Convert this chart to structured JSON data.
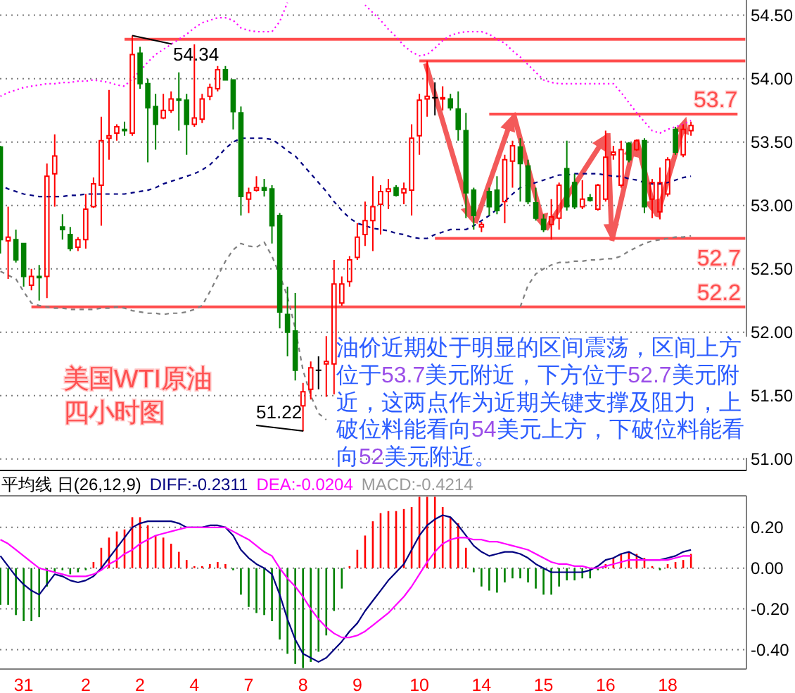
{
  "chart_data": [
    {
      "type": "candlestick",
      "title": "美国WTI原油四小时图",
      "categories": [
        null,
        null,
        null,
        null,
        null,
        null,
        null,
        null,
        null,
        null,
        null,
        null,
        null,
        null,
        null,
        null,
        null,
        null,
        null,
        null,
        null,
        null,
        null,
        null,
        null,
        null,
        null,
        null,
        null,
        null,
        null,
        null,
        null,
        null,
        null,
        null,
        null,
        null,
        null,
        null,
        null,
        null,
        null,
        null,
        null,
        null,
        null,
        null,
        null,
        null,
        null,
        null,
        null,
        null,
        null,
        null,
        null,
        null,
        null,
        null,
        null,
        null,
        null,
        null,
        null,
        null,
        null,
        null,
        null,
        null,
        null,
        null,
        null,
        null,
        null,
        null,
        null,
        null,
        null,
        null,
        null,
        null,
        null,
        null,
        null,
        null,
        null,
        null,
        null,
        null,
        null,
        null,
        null,
        null,
        null,
        null,
        null
      ],
      "ohlc": [
        [
          53.46,
          53.47,
          52.62,
          52.73
        ],
        [
          52.72,
          52.99,
          52.42,
          52.75
        ],
        [
          52.73,
          52.81,
          52.55,
          52.57
        ],
        [
          52.7,
          52.7,
          52.36,
          52.44
        ],
        [
          52.37,
          52.5,
          52.33,
          52.44
        ],
        [
          52.44,
          52.53,
          52.25,
          52.43
        ],
        [
          52.44,
          53.33,
          52.27,
          53.23
        ],
        [
          53.25,
          53.56,
          52.99,
          53.39
        ],
        [
          52.83,
          52.93,
          52.73,
          52.81
        ],
        [
          52.77,
          52.83,
          52.64,
          52.66
        ],
        [
          52.67,
          52.75,
          52.64,
          52.73
        ],
        [
          52.73,
          53.09,
          52.66,
          52.97
        ],
        [
          52.99,
          53.22,
          52.98,
          53.17
        ],
        [
          53.16,
          53.7,
          52.84,
          53.51
        ],
        [
          53.53,
          53.91,
          53.36,
          53.55
        ],
        [
          53.57,
          53.64,
          53.51,
          53.62
        ],
        [
          53.6,
          53.66,
          53.55,
          53.59
        ],
        [
          53.57,
          54.34,
          53.55,
          54.19
        ],
        [
          54.2,
          54.25,
          53.92,
          53.96
        ],
        [
          53.96,
          54.0,
          53.34,
          53.77
        ],
        [
          53.78,
          53.88,
          53.44,
          53.64
        ],
        [
          53.69,
          53.88,
          53.68,
          53.75
        ],
        [
          53.75,
          53.9,
          53.73,
          53.84
        ],
        [
          53.84,
          54.05,
          53.59,
          53.83
        ],
        [
          53.83,
          53.88,
          53.4,
          53.64
        ],
        [
          53.64,
          54.27,
          53.62,
          53.69
        ],
        [
          53.68,
          53.88,
          53.65,
          53.84
        ],
        [
          53.86,
          53.96,
          53.83,
          53.93
        ],
        [
          53.92,
          54.1,
          53.9,
          54.07
        ],
        [
          54.07,
          54.1,
          53.99,
          53.99
        ],
        [
          53.99,
          53.99,
          53.6,
          53.74
        ],
        [
          53.73,
          53.78,
          52.92,
          53.07
        ],
        [
          53.05,
          53.14,
          52.94,
          53.1
        ],
        [
          53.12,
          53.23,
          53.11,
          53.14
        ],
        [
          53.14,
          53.21,
          53.07,
          53.12
        ],
        [
          53.13,
          53.16,
          52.7,
          52.84
        ],
        [
          52.92,
          52.94,
          52.03,
          52.16
        ],
        [
          52.14,
          52.36,
          51.81,
          52.0
        ],
        [
          52.01,
          52.31,
          51.62,
          51.7
        ],
        [
          51.42,
          51.6,
          51.22,
          51.53
        ],
        [
          51.55,
          51.77,
          51.47,
          51.72
        ],
        [
          51.7,
          51.81,
          51.55,
          51.7
        ],
        [
          51.75,
          51.97,
          51.49,
          51.77
        ],
        [
          51.75,
          52.57,
          51.51,
          52.38
        ],
        [
          52.23,
          52.44,
          52.21,
          52.38
        ],
        [
          52.4,
          52.6,
          52.36,
          52.57
        ],
        [
          52.59,
          52.86,
          52.57,
          52.75
        ],
        [
          52.77,
          53.03,
          52.68,
          52.88
        ],
        [
          52.88,
          53.23,
          52.64,
          52.99
        ],
        [
          53.01,
          53.16,
          52.77,
          53.11
        ],
        [
          53.11,
          53.21,
          52.97,
          53.13
        ],
        [
          53.14,
          53.16,
          53.07,
          53.08
        ],
        [
          53.1,
          53.18,
          53.01,
          53.13
        ],
        [
          53.12,
          53.64,
          52.92,
          53.53
        ],
        [
          53.55,
          53.88,
          53.4,
          53.83
        ],
        [
          53.84,
          54.14,
          53.7,
          53.86
        ],
        [
          53.85,
          53.97,
          53.71,
          53.85
        ],
        [
          53.84,
          53.94,
          53.75,
          53.85
        ],
        [
          53.84,
          53.88,
          53.75,
          53.77
        ],
        [
          53.76,
          53.9,
          53.51,
          53.6
        ],
        [
          53.59,
          53.73,
          52.9,
          53.1
        ],
        [
          53.12,
          53.14,
          52.81,
          52.92
        ],
        [
          52.83,
          52.87,
          52.79,
          52.85
        ],
        [
          53.11,
          53.14,
          52.92,
          52.99
        ],
        [
          53.12,
          53.23,
          52.93,
          52.96
        ],
        [
          53.03,
          53.4,
          52.86,
          53.36
        ],
        [
          53.35,
          53.51,
          53.14,
          53.47
        ],
        [
          53.46,
          53.53,
          53.03,
          53.33
        ],
        [
          53.31,
          53.36,
          53.01,
          53.03
        ],
        [
          53.02,
          53.14,
          52.88,
          52.9
        ],
        [
          52.89,
          52.93,
          52.79,
          52.81
        ],
        [
          52.85,
          53.05,
          52.73,
          52.91
        ],
        [
          52.9,
          53.18,
          52.81,
          53.16
        ],
        [
          53.29,
          53.51,
          52.96,
          52.99
        ],
        [
          53.18,
          53.25,
          52.97,
          52.99
        ],
        [
          52.99,
          53.2,
          52.97,
          53.05
        ],
        [
          53.06,
          53.09,
          53.03,
          53.04
        ],
        [
          52.97,
          53.17,
          52.96,
          53.16
        ],
        [
          53.05,
          53.59,
          53.03,
          53.38
        ],
        [
          53.4,
          53.47,
          53.36,
          53.42
        ],
        [
          53.16,
          53.51,
          53.14,
          53.44
        ],
        [
          53.49,
          53.5,
          53.34,
          53.36
        ],
        [
          53.44,
          53.52,
          53.43,
          53.51
        ],
        [
          53.51,
          53.53,
          52.94,
          52.99
        ],
        [
          53.05,
          53.21,
          52.9,
          53.18
        ],
        [
          52.95,
          53.3,
          52.89,
          53.18
        ],
        [
          53.09,
          53.38,
          53.07,
          53.36
        ],
        [
          53.6,
          53.62,
          53.4,
          53.42
        ],
        [
          53.4,
          53.64,
          53.38,
          53.6
        ],
        [
          53.59,
          53.66,
          53.55,
          53.63
        ],
        null,
        null,
        null,
        null,
        null,
        null,
        null
      ],
      "colors": [
        "#008000",
        "#ff0000",
        "#008000",
        "#008000",
        "#ff0000",
        "#008000",
        "#ff0000",
        "#ff0000",
        "#008000",
        "#008000",
        "#ff0000",
        "#ff0000",
        "#ff0000",
        "#ff0000",
        "#ff0000",
        "#ff0000",
        "#008000",
        "#ff0000",
        "#008000",
        "#008000",
        "#008000",
        "#ff0000",
        "#ff0000",
        "#008000",
        "#008000",
        "#ff0000",
        "#ff0000",
        "#ff0000",
        "#ff0000",
        "#008000",
        "#008000",
        "#008000",
        "#ff0000",
        "#ff0000",
        "#008000",
        "#008000",
        "#008000",
        "#008000",
        "#008000",
        "#ff0000",
        "#ff0000",
        "#000000",
        "#ff0000",
        "#ff0000",
        "#ff0000",
        "#ff0000",
        "#ff0000",
        "#ff0000",
        "#ff0000",
        "#ff0000",
        "#ff0000",
        "#008000",
        "#ff0000",
        "#ff0000",
        "#ff0000",
        "#ff0000",
        "#000000",
        "#ff0000",
        "#008000",
        "#008000",
        "#008000",
        "#008000",
        "#ff0000",
        "#008000",
        "#008000",
        "#ff0000",
        "#ff0000",
        "#008000",
        "#008000",
        "#008000",
        "#008000",
        "#ff0000",
        "#ff0000",
        "#008000",
        "#008000",
        "#ff0000",
        "#008000",
        "#ff0000",
        "#ff0000",
        "#ff0000",
        "#ff0000",
        "#008000",
        "#ff0000",
        "#008000",
        "#ff0000",
        "#ff0000",
        "#ff0000",
        "#008000",
        "#ff0000",
        "#ff0000",
        null,
        null,
        null,
        null,
        null,
        null,
        null
      ],
      "ylim": [
        50.91,
        54.62
      ],
      "yticks": [
        {
          "value": 51,
          "label": "51.00"
        },
        {
          "value": 51.5,
          "label": "51.50"
        },
        {
          "value": 52,
          "label": "52.00"
        },
        {
          "value": 52.5,
          "label": "52.50"
        },
        {
          "value": 53,
          "label": "53.00"
        },
        {
          "value": 53.5,
          "label": "53.50"
        },
        {
          "value": 54,
          "label": "54.00"
        },
        {
          "value": 54.5,
          "label": "54.50"
        }
      ],
      "grid": "y",
      "tick_labels": "y",
      "series": [
        {
          "type": "line",
          "color": "#ff00ff",
          "line_style": "dotted",
          "values": [
            53.86,
            53.89,
            53.91,
            53.93,
            53.94,
            53.95,
            53.96,
            53.96,
            53.97,
            53.97,
            53.98,
            53.98,
            53.99,
            53.98,
            53.97,
            53.95,
            53.94,
            54.0,
            54.06,
            54.13,
            54.19,
            54.23,
            54.27,
            54.31,
            54.35,
            54.4,
            54.44,
            54.46,
            54.48,
            54.48,
            54.46,
            54.4,
            54.38,
            54.37,
            54.37,
            54.37,
            54.45,
            54.6,
            null,
            null,
            null,
            null,
            null,
            null,
            null,
            null,
            null,
            54.58,
            54.52,
            54.46,
            54.39,
            54.33,
            54.26,
            54.21,
            54.18,
            54.19,
            54.24,
            54.3,
            54.34,
            54.36,
            54.37,
            54.37,
            54.37,
            54.35,
            54.31,
            54.28,
            54.22,
            54.17,
            54.11,
            54.05,
            53.99,
            53.97,
            53.96,
            53.96,
            53.96,
            53.96,
            53.96,
            53.96,
            53.96,
            53.96,
            53.89,
            53.81,
            53.73,
            53.66,
            53.59,
            53.57,
            53.6,
            53.62,
            53.64,
            53.67,
            null,
            null,
            null,
            null,
            null,
            null,
            null
          ]
        },
        {
          "type": "line",
          "color": "#000080",
          "line_style": "dashed",
          "values": [
            53.16,
            53.13,
            53.11,
            53.09,
            53.08,
            53.07,
            53.07,
            53.07,
            53.07,
            53.08,
            53.08,
            53.09,
            53.09,
            53.09,
            53.09,
            53.09,
            53.09,
            53.1,
            53.11,
            53.12,
            53.14,
            53.17,
            53.19,
            53.21,
            53.23,
            53.25,
            53.28,
            53.32,
            53.38,
            53.45,
            53.5,
            53.53,
            53.53,
            53.53,
            53.53,
            53.52,
            53.48,
            53.43,
            53.39,
            53.32,
            53.25,
            53.18,
            53.11,
            53.03,
            52.96,
            52.9,
            52.86,
            52.84,
            52.82,
            52.81,
            52.8,
            52.78,
            52.77,
            52.75,
            52.74,
            52.74,
            52.77,
            52.79,
            52.81,
            52.81,
            52.81,
            52.84,
            52.88,
            52.92,
            52.97,
            53.03,
            53.09,
            53.14,
            53.16,
            53.18,
            53.2,
            53.22,
            53.24,
            53.24,
            53.25,
            53.25,
            53.25,
            53.25,
            53.24,
            53.23,
            53.23,
            53.21,
            53.2,
            53.18,
            53.17,
            53.17,
            53.18,
            53.2,
            53.22,
            53.23,
            null,
            null,
            null,
            null,
            null,
            null,
            null
          ]
        },
        {
          "type": "line",
          "color": "#808080",
          "line_style": "dashed",
          "values": [
            52.48,
            52.45,
            52.42,
            52.32,
            52.23,
            52.21,
            52.2,
            52.19,
            52.19,
            52.18,
            52.18,
            52.18,
            52.18,
            52.19,
            52.19,
            52.2,
            52.19,
            52.17,
            52.16,
            52.15,
            52.15,
            52.14,
            52.15,
            52.15,
            52.16,
            52.18,
            52.21,
            52.32,
            52.44,
            52.56,
            52.65,
            52.7,
            52.68,
            52.67,
            52.71,
            52.6,
            52.45,
            52.28,
            52.03,
            51.7,
            51.5,
            51.36,
            51.31,
            null,
            null,
            null,
            null,
            null,
            null,
            null,
            null,
            null,
            null,
            null,
            null,
            null,
            null,
            null,
            null,
            null,
            null,
            null,
            null,
            null,
            null,
            null,
            null,
            52.2,
            52.37,
            52.46,
            52.5,
            52.53,
            52.55,
            52.55,
            52.56,
            52.56,
            52.57,
            52.57,
            52.58,
            52.58,
            52.6,
            52.64,
            52.67,
            52.7,
            52.72,
            52.73,
            52.74,
            52.75,
            52.75,
            52.76,
            null,
            null,
            null,
            null,
            null,
            null,
            null
          ]
        },
        {
          "type": "line",
          "color": "#ff4d4d",
          "values": [
            null,
            null,
            null,
            null,
            null,
            null,
            null,
            null,
            null,
            null,
            null,
            null,
            null,
            null,
            null,
            null,
            54.31,
            54.31,
            54.31,
            54.31,
            54.31,
            54.31,
            54.31,
            54.31,
            54.31,
            54.31,
            54.31,
            54.31,
            54.31,
            54.31,
            54.31,
            54.31,
            54.31,
            54.31,
            54.31,
            54.31,
            54.31,
            54.31,
            54.31,
            54.31,
            54.31,
            54.31,
            54.31,
            54.31,
            54.31,
            54.31,
            54.31,
            54.31,
            54.31,
            54.31,
            54.31,
            54.31,
            54.31,
            54.31,
            54.31,
            54.31,
            54.31,
            54.31,
            54.31,
            54.31,
            54.31,
            54.31,
            54.31,
            54.31,
            54.31,
            54.31,
            54.31,
            54.31,
            54.31,
            54.31,
            54.31,
            54.31,
            54.31,
            54.31,
            54.31,
            54.31,
            54.31,
            54.31,
            54.31,
            54.31,
            54.31,
            54.31,
            54.31,
            54.31,
            54.31,
            54.31,
            54.31,
            54.31,
            54.31,
            54.31,
            54.31,
            54.31,
            54.31,
            54.31,
            54.31,
            54.31,
            54.31
          ]
        },
        {
          "type": "line",
          "color": "#ff4d4d",
          "values": [
            null,
            null,
            null,
            null,
            null,
            null,
            null,
            null,
            null,
            null,
            null,
            null,
            null,
            null,
            null,
            null,
            null,
            null,
            null,
            null,
            null,
            null,
            null,
            null,
            null,
            null,
            null,
            null,
            null,
            null,
            null,
            null,
            null,
            null,
            null,
            null,
            null,
            null,
            null,
            null,
            null,
            null,
            null,
            null,
            null,
            null,
            null,
            null,
            null,
            null,
            null,
            null,
            null,
            null,
            54.14,
            54.14,
            54.14,
            54.14,
            54.14,
            54.14,
            54.14,
            54.14,
            54.14,
            54.14,
            54.14,
            54.14,
            54.14,
            54.14,
            54.14,
            54.14,
            54.14,
            54.14,
            54.14,
            54.14,
            54.14,
            54.14,
            54.14,
            54.14,
            54.14,
            54.14,
            54.14,
            54.14,
            54.14,
            54.14,
            54.14,
            54.14,
            54.14,
            54.14,
            54.14,
            54.14,
            54.14,
            54.14,
            54.14,
            54.14,
            54.14,
            54.14,
            54.14
          ]
        },
        {
          "type": "line",
          "name": "53.7",
          "color": "#ff4d4d",
          "values": [
            null,
            null,
            null,
            null,
            null,
            null,
            null,
            null,
            null,
            null,
            null,
            null,
            null,
            null,
            null,
            null,
            null,
            null,
            null,
            null,
            null,
            null,
            null,
            null,
            null,
            null,
            null,
            null,
            null,
            null,
            null,
            null,
            null,
            null,
            null,
            null,
            null,
            null,
            null,
            null,
            null,
            null,
            null,
            null,
            null,
            null,
            null,
            null,
            null,
            null,
            null,
            null,
            null,
            null,
            null,
            null,
            null,
            null,
            null,
            null,
            null,
            null,
            null,
            53.72,
            53.72,
            53.72,
            53.72,
            53.72,
            53.72,
            53.72,
            53.72,
            53.72,
            53.72,
            53.72,
            53.72,
            53.72,
            53.72,
            53.72,
            53.72,
            53.72,
            53.72,
            53.72,
            53.72,
            53.72,
            53.72,
            53.72,
            53.72,
            53.72,
            53.72,
            53.72,
            53.72,
            53.72,
            53.72,
            53.72,
            53.72,
            53.72,
            null
          ]
        },
        {
          "type": "line",
          "name": "52.7",
          "color": "#ff4d4d",
          "values": [
            null,
            null,
            null,
            null,
            null,
            null,
            null,
            null,
            null,
            null,
            null,
            null,
            null,
            null,
            null,
            null,
            null,
            null,
            null,
            null,
            null,
            null,
            null,
            null,
            null,
            null,
            null,
            null,
            null,
            null,
            null,
            null,
            null,
            null,
            null,
            null,
            null,
            null,
            null,
            null,
            null,
            null,
            null,
            null,
            null,
            null,
            null,
            null,
            null,
            null,
            null,
            null,
            null,
            null,
            null,
            null,
            52.74,
            52.74,
            52.74,
            52.74,
            52.74,
            52.74,
            52.74,
            52.74,
            52.74,
            52.74,
            52.74,
            52.74,
            52.74,
            52.74,
            52.74,
            52.74,
            52.74,
            52.74,
            52.74,
            52.74,
            52.74,
            52.74,
            52.74,
            52.74,
            52.74,
            52.74,
            52.74,
            52.74,
            52.74,
            52.74,
            52.74,
            52.74,
            52.74,
            52.74,
            52.74,
            52.74,
            52.74,
            52.74,
            52.74,
            52.74,
            52.74
          ]
        },
        {
          "type": "line",
          "name": "52.2",
          "color": "#ff4d4d",
          "values": [
            null,
            null,
            null,
            null,
            52.2,
            52.2,
            52.2,
            52.2,
            52.2,
            52.2,
            52.2,
            52.2,
            52.2,
            52.2,
            52.2,
            52.2,
            52.2,
            52.2,
            52.2,
            52.2,
            52.2,
            52.2,
            52.2,
            52.2,
            52.2,
            52.2,
            52.2,
            52.2,
            52.2,
            52.2,
            52.2,
            52.2,
            52.2,
            52.2,
            52.2,
            52.2,
            52.2,
            52.2,
            52.2,
            52.2,
            52.2,
            52.2,
            52.2,
            52.2,
            52.2,
            52.2,
            52.2,
            52.2,
            52.2,
            52.2,
            52.2,
            52.2,
            52.2,
            52.2,
            52.2,
            52.2,
            52.2,
            52.2,
            52.2,
            52.2,
            52.2,
            52.2,
            52.2,
            52.2,
            52.2,
            52.2,
            52.2,
            52.2,
            52.2,
            52.2,
            52.2,
            52.2,
            52.2,
            52.2,
            52.2,
            52.2,
            52.2,
            52.2,
            52.2,
            52.2,
            52.2,
            52.2,
            52.2,
            52.2,
            52.2,
            52.2,
            52.2,
            52.2,
            52.2,
            52.2,
            52.2,
            52.2,
            52.2,
            52.2,
            52.2,
            52.2,
            52.2
          ]
        }
      ],
      "annotations": [
        {
          "text": "54.34",
          "y": 54.34
        },
        "51.22",
        "油价近期处于明显的区间震荡，区间上方位于53.7美元附近，下方位于52.7美元附近，这两点作为近期关键支撑及阻力，上破位料能看向54美元上方，下破位料能看向52美元附近。"
      ]
    },
    {
      "type": "bar",
      "title": "平均线 日(26,12,9)",
      "categories": [
        null,
        null,
        null,
        "31",
        null,
        null,
        null,
        null,
        null,
        null,
        null,
        "2",
        null,
        null,
        null,
        null,
        null,
        null,
        "2",
        null,
        null,
        null,
        null,
        null,
        null,
        "4",
        null,
        null,
        null,
        null,
        null,
        null,
        "7",
        null,
        null,
        null,
        null,
        null,
        null,
        "8",
        null,
        null,
        null,
        null,
        null,
        null,
        "9",
        null,
        null,
        null,
        null,
        null,
        null,
        null,
        "10",
        null,
        null,
        null,
        null,
        null,
        null,
        null,
        "14",
        null,
        null,
        null,
        null,
        null,
        null,
        null,
        "15",
        null,
        null,
        null,
        null,
        null,
        null,
        null,
        "16",
        null,
        null,
        null,
        null,
        null,
        null,
        null,
        "18",
        null,
        null,
        null,
        null,
        null,
        null,
        null,
        null,
        null,
        null
      ],
      "ylim": [
        -0.495,
        0.355
      ],
      "yticks": [
        {
          "value": 0.2,
          "label": "0.20"
        },
        {
          "value": 0,
          "label": "0.00"
        },
        {
          "value": -0.2,
          "label": "-0.20"
        },
        {
          "value": -0.4,
          "label": "-0.40"
        }
      ],
      "grid": "y",
      "legend": "top left",
      "series": [
        {
          "values": [
            -0.18,
            -0.18,
            -0.23,
            -0.26,
            -0.26,
            -0.24,
            -0.09,
            -0.02,
            -0.01,
            -0.03,
            -0.02,
            -0.01,
            0.03,
            0.1,
            0.15,
            0.18,
            0.19,
            0.25,
            0.25,
            0.21,
            0.16,
            0.15,
            0.12,
            0.08,
            0.04,
            0.01,
            0.01,
            0.02,
            0.03,
            0.02,
            -0.01,
            -0.13,
            -0.19,
            -0.22,
            -0.23,
            -0.26,
            -0.35,
            -0.42,
            -0.47,
            -0.49,
            -0.46,
            -0.41,
            -0.33,
            -0.21,
            -0.1,
            0.01,
            0.09,
            0.16,
            0.23,
            0.27,
            0.28,
            0.28,
            0.29,
            0.3,
            0.35,
            0.35,
            0.35,
            0.3,
            0.25,
            0.22,
            0.1,
            -0.02,
            -0.09,
            -0.11,
            -0.12,
            -0.07,
            -0.05,
            -0.05,
            -0.07,
            -0.1,
            -0.13,
            -0.13,
            -0.09,
            -0.06,
            -0.06,
            -0.05,
            -0.05,
            -0.01,
            0.02,
            0.05,
            0.07,
            0.08,
            0.07,
            0.05,
            0.01,
            -0.01,
            0.02,
            0.03,
            0.04,
            0.07,
            null,
            null,
            null,
            null,
            null,
            null,
            null
          ],
          "colors": [
            "#008000",
            "#008000",
            "#008000",
            "#008000",
            "#008000",
            "#008000",
            "#008000",
            "#008000",
            "#008000",
            "#008000",
            "#008000",
            "#008000",
            "#ff0000",
            "#ff0000",
            "#ff0000",
            "#ff0000",
            "#ff0000",
            "#ff0000",
            "#ff0000",
            "#ff0000",
            "#ff0000",
            "#ff0000",
            "#ff0000",
            "#ff0000",
            "#ff0000",
            "#ff0000",
            "#ff0000",
            "#ff0000",
            "#ff0000",
            "#ff0000",
            "#008000",
            "#008000",
            "#008000",
            "#008000",
            "#008000",
            "#008000",
            "#008000",
            "#008000",
            "#008000",
            "#008000",
            "#008000",
            "#008000",
            "#008000",
            "#008000",
            "#008000",
            "#ff0000",
            "#ff0000",
            "#ff0000",
            "#ff0000",
            "#ff0000",
            "#ff0000",
            "#ff0000",
            "#ff0000",
            "#ff0000",
            "#ff0000",
            "#ff0000",
            "#ff0000",
            "#ff0000",
            "#ff0000",
            "#ff0000",
            "#ff0000",
            "#008000",
            "#008000",
            "#008000",
            "#008000",
            "#008000",
            "#008000",
            "#008000",
            "#008000",
            "#008000",
            "#008000",
            "#008000",
            "#008000",
            "#008000",
            "#008000",
            "#008000",
            "#008000",
            "#008000",
            "#ff0000",
            "#ff0000",
            "#ff0000",
            "#ff0000",
            "#ff0000",
            "#ff0000",
            "#ff0000",
            "#008000",
            "#ff0000",
            "#ff0000",
            "#ff0000",
            "#ff0000",
            null,
            null,
            null,
            null,
            null,
            null,
            null
          ]
        },
        {
          "type": "line",
          "name": "DIFF:-0.2311",
          "color": "#000080",
          "values": [
            0.06,
            0.01,
            -0.04,
            -0.08,
            -0.11,
            -0.13,
            -0.08,
            -0.03,
            -0.04,
            -0.06,
            -0.07,
            -0.06,
            -0.04,
            0.0,
            0.05,
            0.1,
            0.15,
            0.2,
            0.22,
            0.23,
            0.23,
            0.23,
            0.23,
            0.22,
            0.2,
            0.2,
            0.2,
            0.21,
            0.21,
            0.2,
            0.16,
            0.09,
            0.05,
            0.02,
            0.0,
            -0.03,
            -0.13,
            -0.25,
            -0.35,
            -0.42,
            -0.44,
            -0.46,
            -0.44,
            -0.4,
            -0.36,
            -0.31,
            -0.27,
            -0.21,
            -0.16,
            -0.11,
            -0.06,
            -0.02,
            0.02,
            0.09,
            0.16,
            0.21,
            0.24,
            0.26,
            0.25,
            0.21,
            0.16,
            0.11,
            0.08,
            0.06,
            0.07,
            0.08,
            0.08,
            0.07,
            0.05,
            0.02,
            0.0,
            -0.02,
            -0.02,
            -0.02,
            -0.02,
            -0.02,
            -0.01,
            0.01,
            0.04,
            0.05,
            0.07,
            0.08,
            0.06,
            0.04,
            0.04,
            0.04,
            0.05,
            0.06,
            0.08,
            0.09,
            null,
            null,
            null,
            null,
            null,
            null,
            null
          ]
        },
        {
          "type": "line",
          "name": "DEA:-0.0204",
          "color": "#ff00ff",
          "values": [
            0.14,
            0.12,
            0.09,
            0.06,
            0.03,
            0.0,
            -0.01,
            -0.02,
            -0.03,
            -0.04,
            -0.04,
            -0.04,
            -0.03,
            -0.01,
            0.02,
            0.04,
            0.07,
            0.09,
            0.12,
            0.14,
            0.16,
            0.17,
            0.18,
            0.19,
            0.2,
            0.2,
            0.2,
            0.2,
            0.2,
            0.2,
            0.18,
            0.16,
            0.14,
            0.11,
            0.08,
            0.06,
            0.0,
            -0.05,
            -0.09,
            -0.14,
            -0.2,
            -0.25,
            -0.29,
            -0.32,
            -0.34,
            -0.34,
            -0.33,
            -0.31,
            -0.28,
            -0.25,
            -0.22,
            -0.18,
            -0.14,
            -0.09,
            -0.03,
            0.03,
            0.08,
            0.12,
            0.14,
            0.15,
            0.15,
            0.14,
            0.14,
            0.13,
            0.13,
            0.12,
            0.11,
            0.1,
            0.09,
            0.07,
            0.05,
            0.03,
            0.02,
            0.02,
            0.01,
            0.01,
            0.0,
            0.0,
            0.01,
            0.02,
            0.03,
            0.04,
            0.04,
            0.04,
            0.04,
            0.04,
            0.04,
            0.05,
            0.06,
            0.06,
            null,
            null,
            null,
            null,
            null,
            null,
            null
          ]
        }
      ],
      "annotations": [
        "MACD:-0.4214"
      ]
    }
  ]
}
